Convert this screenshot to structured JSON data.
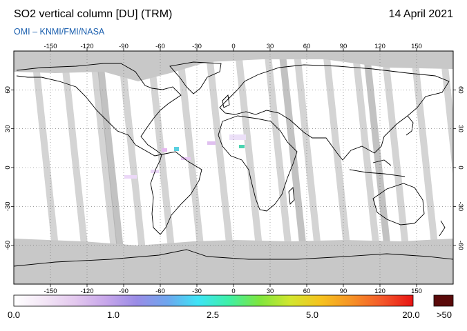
{
  "header": {
    "title": "SO2 vertical column [DU] (TRM)",
    "date": "14 April 2021",
    "credit": "OMI  –  KNMI/FMI/NASA"
  },
  "map": {
    "lon_ticks": [
      "-150",
      "-120",
      "-90",
      "-60",
      "-30",
      "0",
      "30",
      "60",
      "90",
      "120",
      "150"
    ],
    "lat_ticks_left": [
      "60",
      "30",
      "0",
      "-30",
      "-60"
    ],
    "lat_ticks_right": [
      "60",
      "30",
      "0",
      "-30",
      "-60"
    ],
    "colors": {
      "ocean": "#ffffff",
      "swath_gap": "#d4d4d4",
      "dark_strip": "#a8a8a8",
      "polar": "#c8c8c8",
      "coast": "#000000",
      "grid": "#666666"
    }
  },
  "legend": {
    "labels": [
      "0.0",
      "1.0",
      "2.5",
      "5.0",
      "20.0",
      ">50"
    ],
    "gradient": [
      "#ffffff",
      "#f3e6f6",
      "#e3c8ee",
      "#c7a6ea",
      "#9a8ce6",
      "#6ea6ee",
      "#3ee4f6",
      "#3ef0a6",
      "#7ee63e",
      "#d2e62e",
      "#f6c21e",
      "#f69226",
      "#f4582a",
      "#e81414"
    ],
    "overflow_color": "#5a0a0a"
  }
}
